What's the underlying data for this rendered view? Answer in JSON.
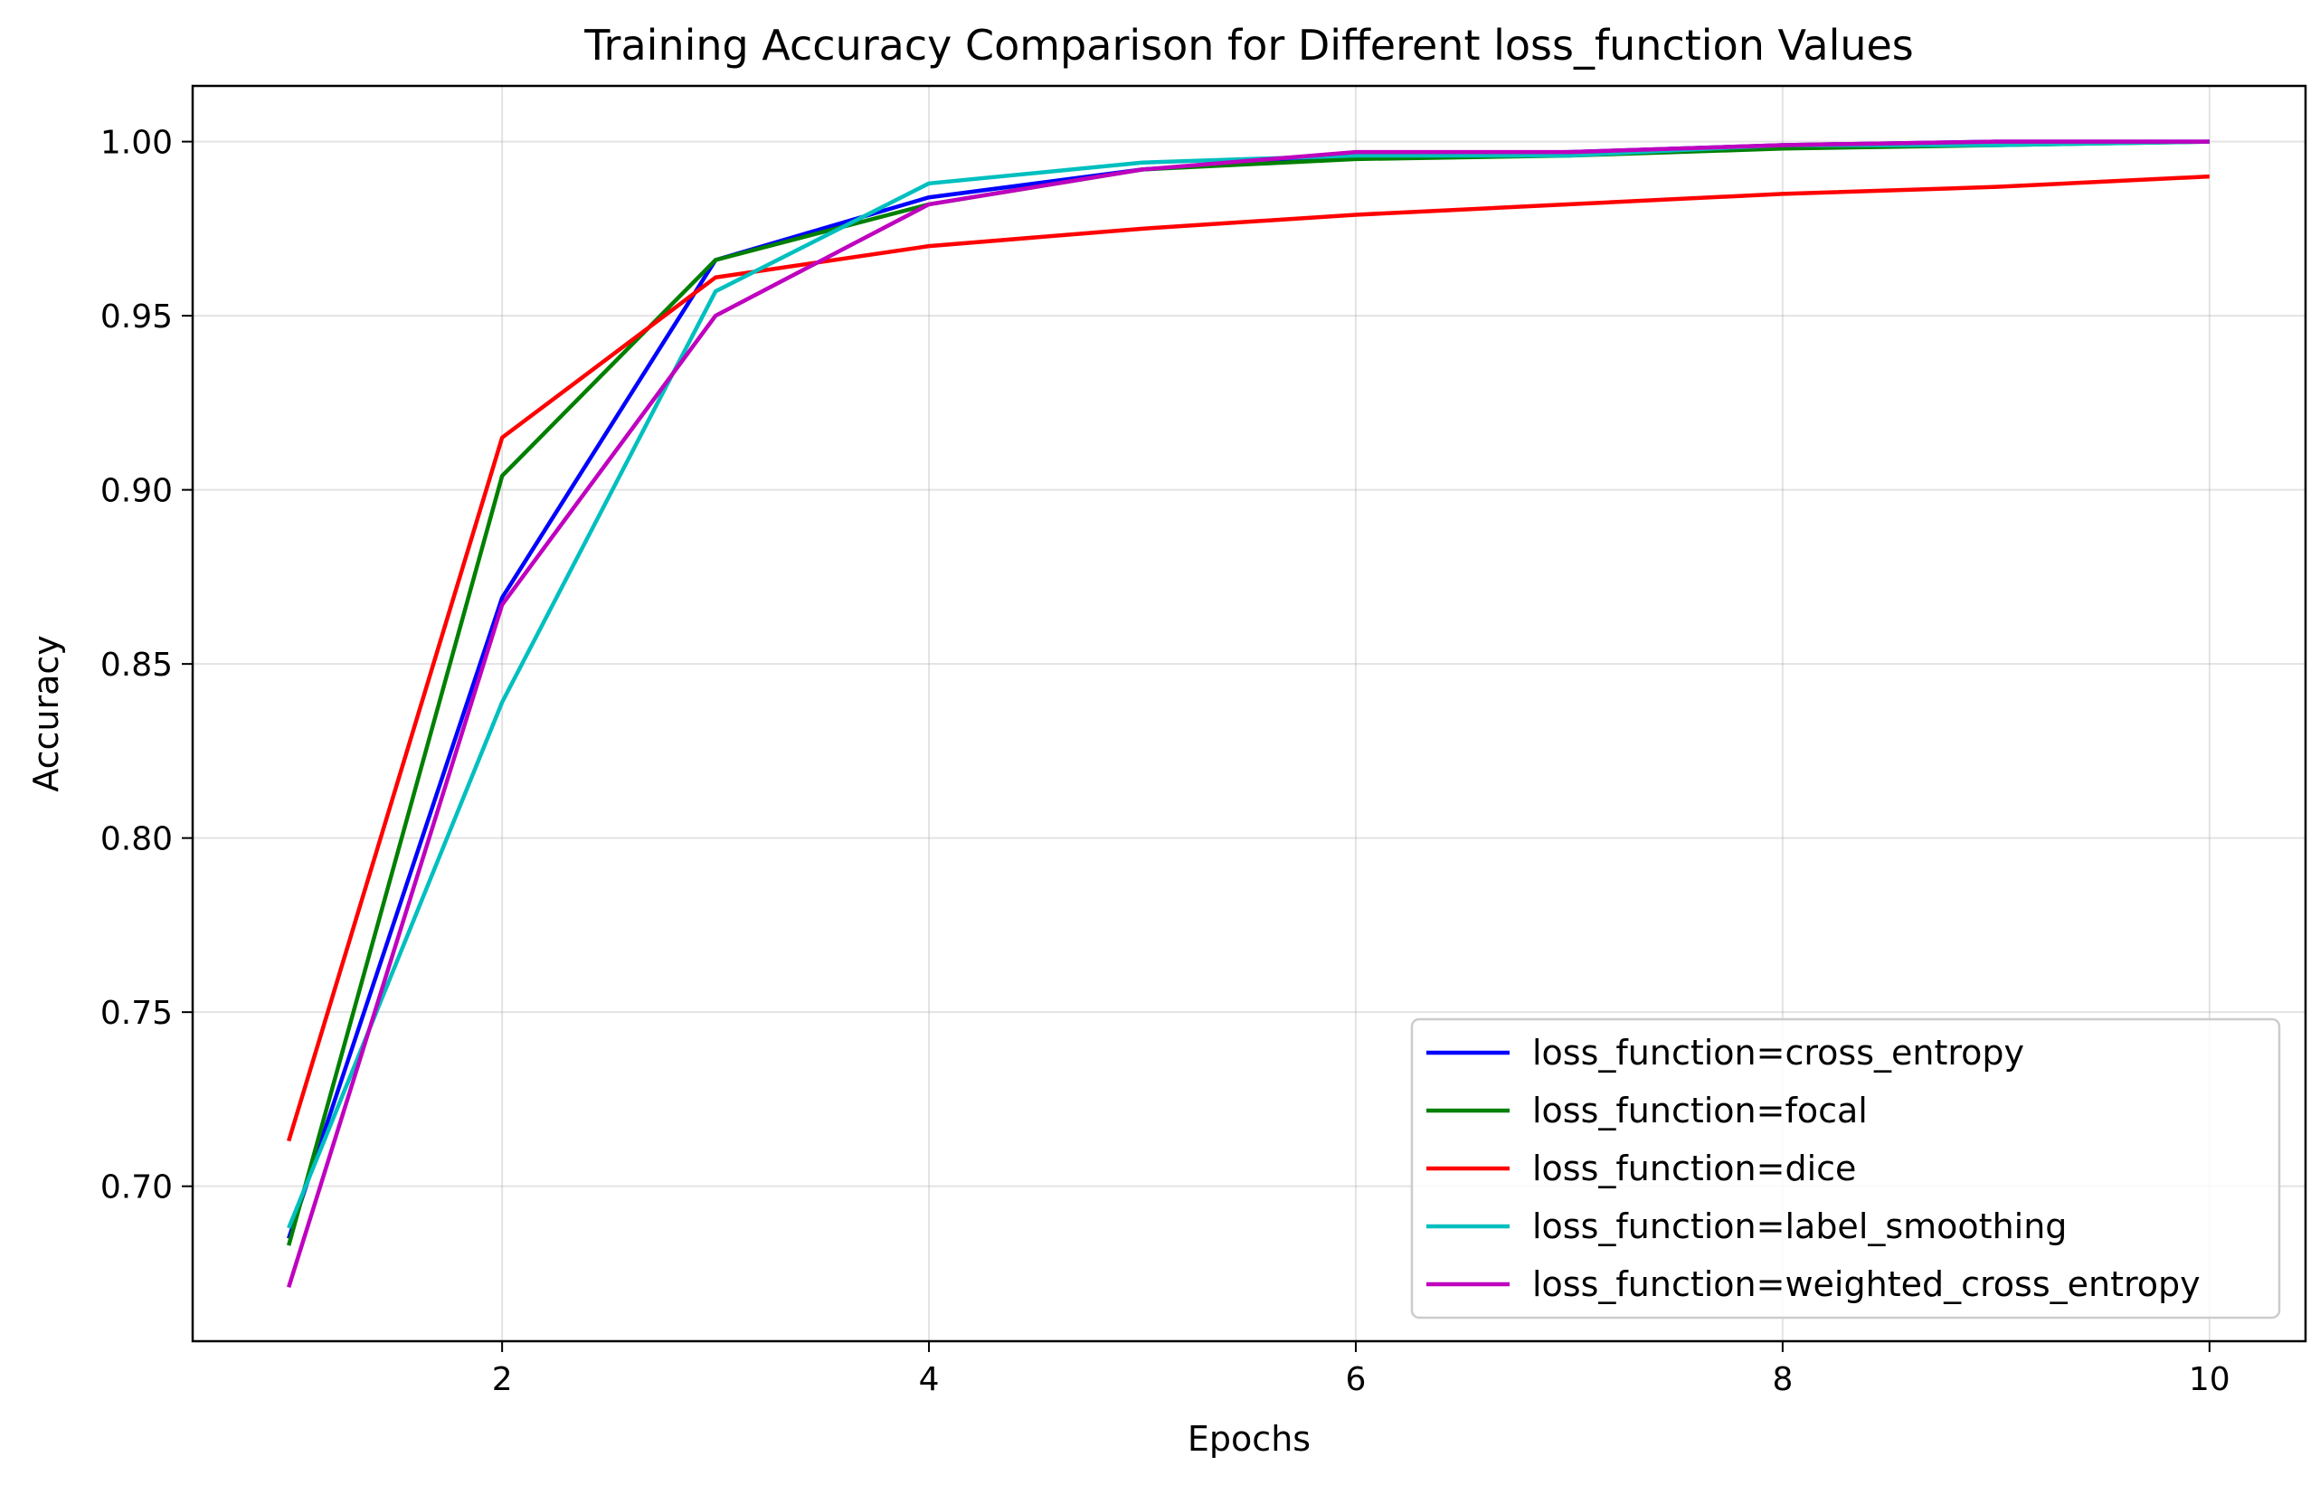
{
  "chart_data": {
    "type": "line",
    "title": "Training Accuracy Comparison for Different loss_function Values",
    "xlabel": "Epochs",
    "ylabel": "Accuracy",
    "xlim": [
      0.55,
      10.45
    ],
    "ylim": [
      0.6555,
      1.016
    ],
    "xticks": [
      2,
      4,
      6,
      8,
      10
    ],
    "yticks": [
      0.7,
      0.75,
      0.8,
      0.85,
      0.9,
      0.95,
      1.0
    ],
    "xtick_labels": [
      "2",
      "4",
      "6",
      "8",
      "10"
    ],
    "ytick_labels": [
      "0.70",
      "0.75",
      "0.80",
      "0.85",
      "0.90",
      "0.95",
      "1.00"
    ],
    "grid": true,
    "legend_position": "lower-right",
    "x": [
      1,
      2,
      3,
      4,
      5,
      6,
      7,
      8,
      9,
      10
    ],
    "series": [
      {
        "name": "loss_function=cross_entropy",
        "color": "#0000ff",
        "values": [
          0.685,
          0.869,
          0.966,
          0.984,
          0.992,
          0.996,
          0.997,
          0.999,
          1.0,
          1.0
        ]
      },
      {
        "name": "loss_function=focal",
        "color": "#008000",
        "values": [
          0.683,
          0.904,
          0.966,
          0.982,
          0.992,
          0.995,
          0.996,
          0.998,
          0.999,
          1.0
        ]
      },
      {
        "name": "loss_function=dice",
        "color": "#ff0000",
        "values": [
          0.713,
          0.915,
          0.961,
          0.97,
          0.975,
          0.979,
          0.982,
          0.985,
          0.987,
          0.99
        ]
      },
      {
        "name": "loss_function=label_smoothing",
        "color": "#00bfbf",
        "values": [
          0.688,
          0.839,
          0.957,
          0.988,
          0.994,
          0.996,
          0.996,
          0.999,
          0.999,
          1.0
        ]
      },
      {
        "name": "loss_function=weighted_cross_entropy",
        "color": "#bf00bf",
        "values": [
          0.671,
          0.867,
          0.95,
          0.982,
          0.992,
          0.997,
          0.997,
          0.999,
          1.0,
          1.0
        ]
      }
    ]
  }
}
